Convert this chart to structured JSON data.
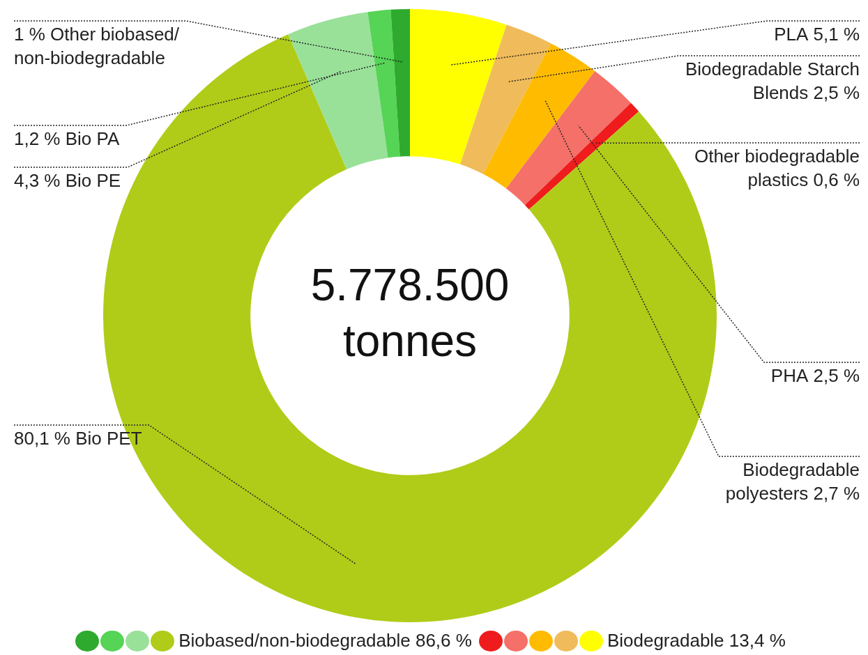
{
  "chart_data": {
    "type": "donut",
    "categories": [
      "PLA",
      "Biodegradable Starch Blends",
      "Biodegradable polyesters",
      "PHA",
      "Other biodegradable plastics",
      "Bio PET",
      "Bio PE",
      "Bio PA",
      "Other biobased/non-biodegradable"
    ],
    "values": [
      5.1,
      2.5,
      2.7,
      2.5,
      0.6,
      80.1,
      4.3,
      1.2,
      1
    ],
    "colors": [
      "#ffff00",
      "#f0bb5a",
      "#ffbb00",
      "#f47068",
      "#ee1c1c",
      "#b0cc18",
      "#99e199",
      "#55d455",
      "#2eaa2e"
    ],
    "value_labels": [
      "5,1 %",
      "2,5 %",
      "2,7 %",
      "2,5 %",
      "0,6 %",
      "80,1 %",
      "4,3 %",
      "1,2 %",
      "1 %"
    ],
    "annotations": [
      "5.778.500 tonnes",
      "Biobased/non-biodegradable 86,6 %",
      "Biodegradable 13,4 %"
    ],
    "legend": false
  }
}
